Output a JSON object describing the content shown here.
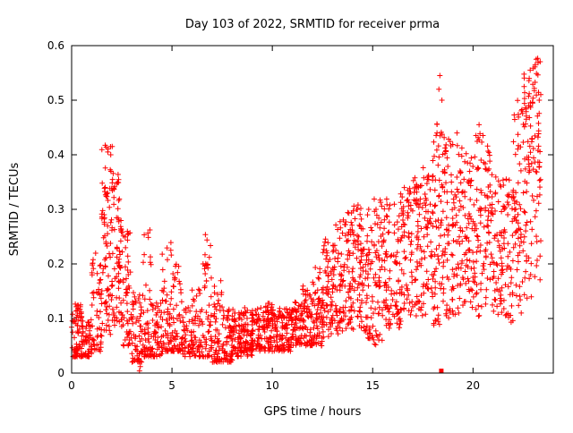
{
  "chart_data": {
    "type": "scatter",
    "title": "Day 103 of 2022, SRMTID for receiver prma",
    "xlabel": "GPS time / hours",
    "ylabel": "SRMTID / TECUs",
    "xlim": [
      0,
      24
    ],
    "ylim": [
      0,
      0.6
    ],
    "xtick_values": [
      0,
      5,
      10,
      15,
      20
    ],
    "xtick_labels": [
      "0",
      "5",
      "10",
      "15",
      "20"
    ],
    "ytick_values": [
      0,
      0.1,
      0.2,
      0.3,
      0.4,
      0.5,
      0.6
    ],
    "ytick_labels": [
      "0",
      "0.1",
      "0.2",
      "0.3",
      "0.4",
      "0.5",
      "0.6"
    ],
    "grid": false,
    "legend": "none",
    "marker": {
      "shape": "plus",
      "color": "#ff0000",
      "size": 7
    },
    "seed": 12345,
    "density_bins": [
      [
        0.0,
        0.5,
        70,
        0.03,
        0.13,
        1.6
      ],
      [
        0.5,
        1.0,
        55,
        0.03,
        0.1,
        1.5
      ],
      [
        1.0,
        1.5,
        55,
        0.04,
        0.22,
        1.8
      ],
      [
        1.5,
        2.0,
        75,
        0.07,
        0.42,
        1.4
      ],
      [
        2.0,
        2.5,
        75,
        0.08,
        0.38,
        1.2
      ],
      [
        2.5,
        3.0,
        55,
        0.05,
        0.26,
        1.6
      ],
      [
        3.0,
        3.5,
        55,
        0.02,
        0.15,
        1.6
      ],
      [
        3.5,
        4.0,
        55,
        0.03,
        0.27,
        2.2
      ],
      [
        4.0,
        4.5,
        50,
        0.03,
        0.13,
        1.6
      ],
      [
        4.5,
        5.0,
        55,
        0.04,
        0.25,
        2.0
      ],
      [
        5.0,
        5.5,
        55,
        0.04,
        0.22,
        2.0
      ],
      [
        5.5,
        6.0,
        45,
        0.03,
        0.12,
        1.5
      ],
      [
        6.0,
        6.5,
        50,
        0.03,
        0.16,
        1.8
      ],
      [
        6.5,
        7.0,
        55,
        0.03,
        0.26,
        2.0
      ],
      [
        7.0,
        7.5,
        55,
        0.02,
        0.17,
        1.8
      ],
      [
        7.5,
        8.0,
        60,
        0.02,
        0.12,
        1.4
      ],
      [
        8.0,
        8.5,
        60,
        0.03,
        0.12,
        1.3
      ],
      [
        8.5,
        9.0,
        60,
        0.03,
        0.12,
        1.3
      ],
      [
        9.0,
        9.5,
        60,
        0.04,
        0.12,
        1.3
      ],
      [
        9.5,
        10.0,
        65,
        0.04,
        0.13,
        1.2
      ],
      [
        10.0,
        10.5,
        60,
        0.04,
        0.12,
        1.3
      ],
      [
        10.5,
        11.0,
        60,
        0.04,
        0.12,
        1.3
      ],
      [
        11.0,
        11.5,
        60,
        0.05,
        0.13,
        1.3
      ],
      [
        11.5,
        12.0,
        60,
        0.05,
        0.16,
        1.4
      ],
      [
        12.0,
        12.5,
        60,
        0.05,
        0.2,
        1.5
      ],
      [
        12.5,
        13.0,
        60,
        0.06,
        0.25,
        1.4
      ],
      [
        13.0,
        13.5,
        60,
        0.07,
        0.28,
        1.3
      ],
      [
        13.5,
        14.0,
        60,
        0.08,
        0.3,
        1.2
      ],
      [
        14.0,
        14.5,
        60,
        0.08,
        0.31,
        1.1
      ],
      [
        14.5,
        15.0,
        55,
        0.06,
        0.3,
        1.2
      ],
      [
        15.0,
        15.5,
        55,
        0.05,
        0.32,
        1.2
      ],
      [
        15.5,
        16.0,
        55,
        0.08,
        0.32,
        1.1
      ],
      [
        16.0,
        16.5,
        55,
        0.08,
        0.33,
        1.1
      ],
      [
        16.5,
        17.0,
        55,
        0.1,
        0.34,
        1.1
      ],
      [
        17.0,
        17.5,
        55,
        0.1,
        0.36,
        1.0
      ],
      [
        17.5,
        18.0,
        55,
        0.1,
        0.39,
        1.0
      ],
      [
        18.0,
        18.5,
        65,
        0.08,
        0.46,
        1.0
      ],
      [
        18.5,
        19.0,
        65,
        0.1,
        0.45,
        1.0
      ],
      [
        19.0,
        19.5,
        55,
        0.1,
        0.42,
        1.0
      ],
      [
        19.5,
        20.0,
        55,
        0.12,
        0.41,
        1.0
      ],
      [
        20.0,
        20.5,
        55,
        0.1,
        0.44,
        1.0
      ],
      [
        20.5,
        21.0,
        55,
        0.12,
        0.42,
        1.0
      ],
      [
        21.0,
        21.5,
        50,
        0.1,
        0.36,
        1.1
      ],
      [
        21.5,
        22.0,
        50,
        0.08,
        0.36,
        1.1
      ],
      [
        22.0,
        22.5,
        60,
        0.1,
        0.5,
        0.9
      ],
      [
        22.5,
        23.0,
        70,
        0.1,
        0.55,
        0.8
      ],
      [
        23.0,
        23.4,
        50,
        0.15,
        0.58,
        0.8
      ]
    ],
    "outlier_points": [
      [
        2.02,
        0.415
      ],
      [
        1.95,
        0.4
      ],
      [
        18.35,
        0.545
      ],
      [
        18.3,
        0.52
      ],
      [
        18.45,
        0.5
      ],
      [
        23.15,
        0.575
      ],
      [
        23.1,
        0.565
      ],
      [
        22.85,
        0.555
      ],
      [
        22.8,
        0.54
      ],
      [
        3.38,
        0.004
      ],
      [
        3.42,
        0.012
      ],
      [
        3.35,
        0.02
      ],
      [
        6.55,
        0.2
      ],
      [
        14.2,
        0.3
      ],
      [
        19.2,
        0.44
      ],
      [
        20.3,
        0.455
      ],
      [
        23.3,
        0.5
      ]
    ],
    "square_points": [
      [
        18.42,
        0.004
      ]
    ]
  }
}
